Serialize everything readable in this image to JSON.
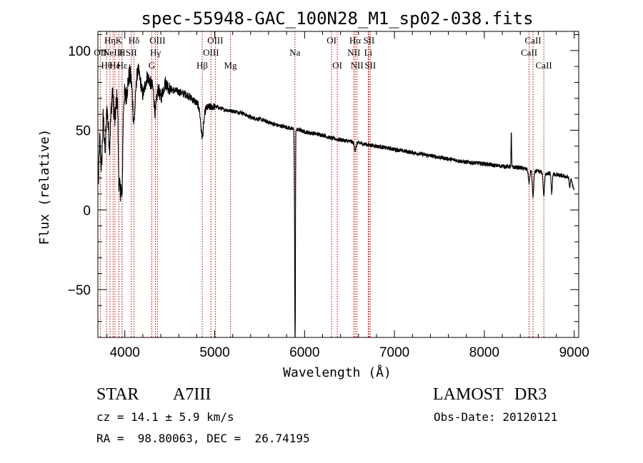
{
  "chart_data": {
    "type": "line",
    "title": "spec-55948-GAC_100N28_M1_sp02-038.fits",
    "xlabel": "Wavelength (Å)",
    "ylabel": "Flux (relative)",
    "xlim": [
      3700,
      9050
    ],
    "ylim": [
      -80,
      112
    ],
    "xticks": [
      4000,
      5000,
      6000,
      7000,
      8000,
      9000
    ],
    "yticks": [
      -50,
      0,
      50,
      100
    ],
    "spectrum_knots": [
      [
        3700,
        5
      ],
      [
        3720,
        45
      ],
      [
        3740,
        25
      ],
      [
        3760,
        60
      ],
      [
        3780,
        35
      ],
      [
        3800,
        65
      ],
      [
        3830,
        40
      ],
      [
        3860,
        75
      ],
      [
        3890,
        55
      ],
      [
        3920,
        80
      ],
      [
        3950,
        30
      ],
      [
        3980,
        78
      ],
      [
        4010,
        70
      ],
      [
        4050,
        85
      ],
      [
        4100,
        80
      ],
      [
        4150,
        88
      ],
      [
        4200,
        72
      ],
      [
        4250,
        84
      ],
      [
        4300,
        78
      ],
      [
        4350,
        82
      ],
      [
        4400,
        70
      ],
      [
        4450,
        80
      ],
      [
        4500,
        76
      ],
      [
        4600,
        74
      ],
      [
        4700,
        72
      ],
      [
        4800,
        67
      ],
      [
        4860,
        62
      ],
      [
        4900,
        64
      ],
      [
        5000,
        65
      ],
      [
        5100,
        63
      ],
      [
        5200,
        62
      ],
      [
        5300,
        61
      ],
      [
        5400,
        58
      ],
      [
        5500,
        57
      ],
      [
        5600,
        55
      ],
      [
        5700,
        53
      ],
      [
        5800,
        52
      ],
      [
        5850,
        51
      ],
      [
        5950,
        50
      ],
      [
        6000,
        49
      ],
      [
        6100,
        48
      ],
      [
        6200,
        47
      ],
      [
        6300,
        45
      ],
      [
        6400,
        44
      ],
      [
        6500,
        43
      ],
      [
        6600,
        42
      ],
      [
        6700,
        41
      ],
      [
        6800,
        40
      ],
      [
        6900,
        39
      ],
      [
        7000,
        38
      ],
      [
        7100,
        37
      ],
      [
        7200,
        36
      ],
      [
        7300,
        35
      ],
      [
        7400,
        34
      ],
      [
        7500,
        33
      ],
      [
        7600,
        32
      ],
      [
        7700,
        31
      ],
      [
        7800,
        30
      ],
      [
        7900,
        29.5
      ],
      [
        8000,
        29
      ],
      [
        8100,
        28
      ],
      [
        8200,
        27.5
      ],
      [
        8300,
        27
      ],
      [
        8400,
        26.5
      ],
      [
        8500,
        25
      ],
      [
        8600,
        24
      ],
      [
        8700,
        23
      ],
      [
        8800,
        22
      ],
      [
        8900,
        21
      ],
      [
        8960,
        20
      ],
      [
        9000,
        12
      ]
    ],
    "absorption_features": [
      {
        "x": 3934,
        "depth": 40,
        "width": 10
      },
      {
        "x": 3969,
        "depth": 50,
        "width": 10
      },
      {
        "x": 4102,
        "depth": 25,
        "width": 14
      },
      {
        "x": 4340,
        "depth": 20,
        "width": 14
      },
      {
        "x": 4861,
        "depth": 16,
        "width": 16
      },
      {
        "x": 5890,
        "depth": 58,
        "width": 4
      },
      {
        "x": 5895,
        "depth": 132,
        "width": 3
      },
      {
        "x": 6563,
        "depth": 5,
        "width": 10
      },
      {
        "x": 8498,
        "depth": 8,
        "width": 8
      },
      {
        "x": 8542,
        "depth": 16,
        "width": 8
      },
      {
        "x": 8662,
        "depth": 14,
        "width": 8
      },
      {
        "x": 8750,
        "depth": 12,
        "width": 6
      },
      {
        "x": 8950,
        "depth": 6,
        "width": 6
      }
    ],
    "emission_features": [
      {
        "x": 8300,
        "height": 22,
        "width": 3
      }
    ],
    "spectral_lines": [
      {
        "x": 3727,
        "label": "OII",
        "row": 2
      },
      {
        "x": 3798,
        "label": "Hθ",
        "row": 3
      },
      {
        "x": 3835,
        "label": "Hη",
        "row": 1
      },
      {
        "x": 3869,
        "label": "NeIII",
        "row": 2
      },
      {
        "x": 3889,
        "label": "He",
        "row": 3
      },
      {
        "x": 3934,
        "label": "K",
        "row": 1
      },
      {
        "x": 3969,
        "label": "H",
        "row": 2
      },
      {
        "x": 3970,
        "label": "Hε",
        "row": 3
      },
      {
        "x": 4072,
        "label": "SII",
        "row": 2
      },
      {
        "x": 4102,
        "label": "Hδ",
        "row": 1
      },
      {
        "x": 4300,
        "label": "G",
        "row": 3
      },
      {
        "x": 4340,
        "label": "Hγ",
        "row": 2
      },
      {
        "x": 4363,
        "label": "OIII",
        "row": 1
      },
      {
        "x": 4861,
        "label": "Hβ",
        "row": 3
      },
      {
        "x": 4959,
        "label": "OIII",
        "row": 2
      },
      {
        "x": 5007,
        "label": "OIII",
        "row": 1
      },
      {
        "x": 5175,
        "label": "Mg",
        "row": 3
      },
      {
        "x": 5893,
        "label": "Na",
        "row": 2
      },
      {
        "x": 6300,
        "label": "OI",
        "row": 1
      },
      {
        "x": 6364,
        "label": "OI",
        "row": 3
      },
      {
        "x": 6548,
        "label": "NII",
        "row": 2
      },
      {
        "x": 6563,
        "label": "Hα",
        "row": 1
      },
      {
        "x": 6583,
        "label": "NII",
        "row": 3
      },
      {
        "x": 6708,
        "label": "Li",
        "row": 2
      },
      {
        "x": 6716,
        "label": "SII",
        "row": 1
      },
      {
        "x": 6731,
        "label": "SII",
        "row": 3
      },
      {
        "x": 8498,
        "label": "CaII",
        "row": 2
      },
      {
        "x": 8542,
        "label": "CaII",
        "row": 1
      },
      {
        "x": 8662,
        "label": "CaII",
        "row": 3
      }
    ]
  },
  "info": {
    "object_type": "STAR",
    "subclass": "A7III",
    "survey": "LAMOST",
    "release": "DR3",
    "cz_line": "cz = 14.1 ± 5.9 km/s",
    "obs_date": "Obs-Date: 20120121",
    "coords_line": "RA =  98.80063, DEC =  26.74195"
  },
  "colors": {
    "spectrum": "#000000",
    "line_markers": "#c00000",
    "axes": "#000000"
  }
}
